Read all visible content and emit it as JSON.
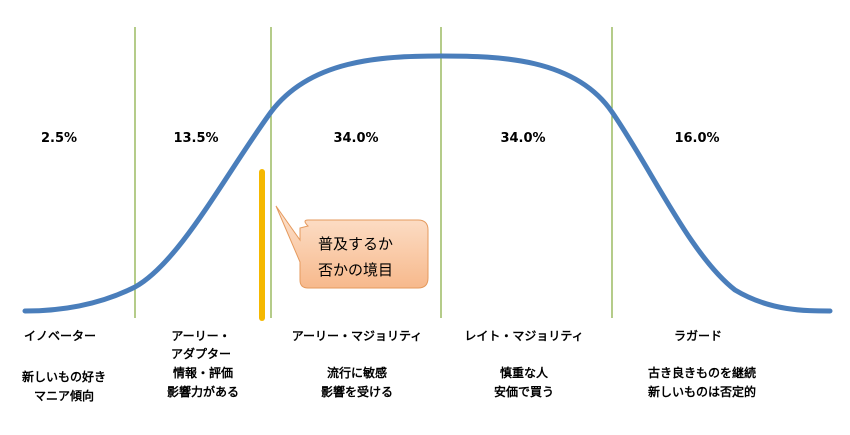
{
  "segments": [
    {
      "percent": "2.5%",
      "name_lines": [
        "イノベーター"
      ],
      "trait_lines": [
        "新しいもの好き",
        "マニア傾向"
      ]
    },
    {
      "percent": "13.5%",
      "name_lines": [
        "アーリー・",
        "アダプター"
      ],
      "trait_lines": [
        "情報・評価",
        "影響力がある"
      ]
    },
    {
      "percent": "34.0%",
      "name_lines": [
        "アーリー・マジョリティ"
      ],
      "trait_lines": [
        "流行に敏感",
        "影響を受ける"
      ]
    },
    {
      "percent": "34.0%",
      "name_lines": [
        "レイト・マジョリティ"
      ],
      "trait_lines": [
        "慎重な人",
        "安価で買う"
      ]
    },
    {
      "percent": "16.0%",
      "name_lines": [
        "ラガード"
      ],
      "trait_lines": [
        "古き良きものを継続",
        "新しいものは否定的"
      ]
    }
  ],
  "callout": {
    "lines": [
      "普及するか",
      "否かの境目"
    ]
  },
  "colors": {
    "curve": "#4a7ebb",
    "dividers": "#8db04a",
    "chasm_marker": "#f5b800",
    "callout_fill_top": "#fde3cf",
    "callout_fill_bottom": "#f7b98c",
    "callout_border": "#e59a5e"
  }
}
